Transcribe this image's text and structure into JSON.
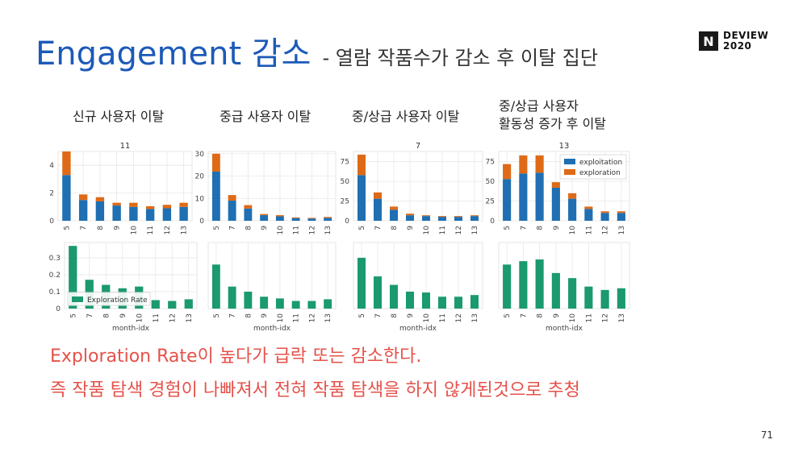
{
  "title": {
    "main": "Engagement 감소",
    "sub": "- 열람 작품수가 감소 후 이탈 집단"
  },
  "logo": {
    "mark": "N",
    "line1": "DEVIEW",
    "line2": "2020"
  },
  "groups": [
    {
      "label": "신규 사용자 이탈"
    },
    {
      "label": "중급 사용자 이탈"
    },
    {
      "label": "중/상급 사용자 이탈"
    },
    {
      "label": "중/상급 사용자\n활동성 증가 후 이탈"
    }
  ],
  "footer": {
    "line1": "Exploration Rate이 높다가 급락 또는 감소한다.",
    "line2": "즉 작품 탐색 경험이 나빠져서 전혀 작품 탐색을 하지 않게된것으로 추청"
  },
  "page_number": "71",
  "colors": {
    "exploitation": "#1f6fb2",
    "exploration": "#de6a17",
    "rate": "#1a9a6e",
    "title": "#1c5ab8",
    "footer": "#e5524a"
  },
  "chart_data": [
    {
      "type": "bar",
      "title": "11",
      "stacked": true,
      "categories": [
        "5",
        "7",
        "8",
        "9",
        "10",
        "11",
        "12",
        "13"
      ],
      "series": [
        {
          "name": "exploitation",
          "values": [
            3.3,
            1.5,
            1.4,
            1.1,
            1.0,
            0.85,
            0.9,
            1.0
          ]
        },
        {
          "name": "exploration",
          "values": [
            1.7,
            0.4,
            0.3,
            0.2,
            0.3,
            0.2,
            0.25,
            0.3
          ]
        }
      ],
      "ylim": [
        0,
        5
      ],
      "yticks": [
        0,
        2,
        4
      ],
      "grid": true
    },
    {
      "type": "bar",
      "title": "",
      "stacked": true,
      "categories": [
        "5",
        "7",
        "8",
        "9",
        "10",
        "11",
        "12",
        "13"
      ],
      "series": [
        {
          "name": "exploitation",
          "values": [
            22,
            9,
            5.5,
            2.5,
            2,
            1.2,
            1,
            1.3
          ]
        },
        {
          "name": "exploration",
          "values": [
            8,
            2.5,
            1.5,
            0.5,
            0.5,
            0.3,
            0.3,
            0.4
          ]
        }
      ],
      "ylim": [
        0,
        31
      ],
      "yticks": [
        0,
        10,
        20,
        30
      ],
      "grid": true
    },
    {
      "type": "bar",
      "title": "7",
      "stacked": true,
      "categories": [
        "5",
        "7",
        "8",
        "9",
        "10",
        "11",
        "12",
        "13"
      ],
      "series": [
        {
          "name": "exploitation",
          "values": [
            58,
            28,
            14,
            7,
            6,
            5,
            5,
            6
          ]
        },
        {
          "name": "exploration",
          "values": [
            26,
            8,
            4,
            2,
            1,
            1,
            1,
            1
          ]
        }
      ],
      "ylim": [
        0,
        88
      ],
      "yticks": [
        0,
        25,
        50,
        75
      ],
      "grid": true
    },
    {
      "type": "bar",
      "title": "13",
      "stacked": true,
      "categories": [
        "5",
        "7",
        "8",
        "9",
        "10",
        "11",
        "12",
        "13"
      ],
      "series": [
        {
          "name": "exploitation",
          "values": [
            53,
            60,
            61,
            42,
            28,
            15,
            10,
            10
          ]
        },
        {
          "name": "exploration",
          "values": [
            19,
            23,
            22,
            7,
            7,
            3,
            2,
            2
          ]
        }
      ],
      "ylim": [
        0,
        88
      ],
      "yticks": [
        0,
        25,
        50,
        75
      ],
      "grid": true,
      "legend": {
        "position": "top-right",
        "entries": [
          "exploitation",
          "exploration"
        ]
      }
    },
    {
      "type": "bar",
      "title": "",
      "categories": [
        "5",
        "7",
        "8",
        "9",
        "10",
        "11",
        "12",
        "13"
      ],
      "series": [
        {
          "name": "Exploration Rate",
          "values": [
            0.37,
            0.17,
            0.14,
            0.12,
            0.13,
            0.05,
            0.045,
            0.055
          ]
        }
      ],
      "ylim": [
        0,
        0.39
      ],
      "yticks": [
        0.0,
        0.1,
        0.2,
        0.3
      ],
      "xlabel": "month-idx",
      "grid": true,
      "legend": {
        "position": "lower-left",
        "entries": [
          "Exploration Rate"
        ]
      }
    },
    {
      "type": "bar",
      "title": "",
      "categories": [
        "5",
        "7",
        "8",
        "9",
        "10",
        "11",
        "12",
        "13"
      ],
      "series": [
        {
          "name": "Exploration Rate",
          "values": [
            0.26,
            0.13,
            0.1,
            0.07,
            0.06,
            0.045,
            0.045,
            0.055
          ]
        }
      ],
      "ylim": [
        0,
        0.39
      ],
      "xlabel": "month-idx",
      "grid": true
    },
    {
      "type": "bar",
      "title": "",
      "categories": [
        "5",
        "7",
        "8",
        "9",
        "10",
        "11",
        "12",
        "13"
      ],
      "series": [
        {
          "name": "Exploration Rate",
          "values": [
            0.3,
            0.19,
            0.14,
            0.1,
            0.095,
            0.07,
            0.07,
            0.08
          ]
        }
      ],
      "ylim": [
        0,
        0.39
      ],
      "xlabel": "month-idx",
      "grid": true
    },
    {
      "type": "bar",
      "title": "",
      "categories": [
        "5",
        "7",
        "8",
        "9",
        "10",
        "11",
        "12",
        "13"
      ],
      "series": [
        {
          "name": "Exploration Rate",
          "values": [
            0.26,
            0.28,
            0.29,
            0.21,
            0.18,
            0.13,
            0.11,
            0.12
          ]
        }
      ],
      "ylim": [
        0,
        0.39
      ],
      "xlabel": "month-idx",
      "grid": true
    }
  ]
}
